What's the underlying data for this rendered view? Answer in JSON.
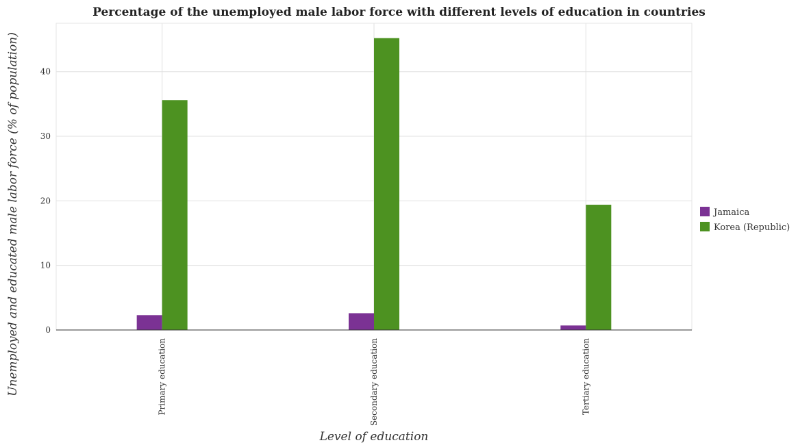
{
  "title": "Percentage of the unemployed male labor force with different levels of education in countries",
  "colors": {
    "jamaica": "#7b3294",
    "korea": "#4d9221",
    "grid": "#e0e0e0"
  },
  "chart_data": {
    "type": "bar",
    "title": "Percentage of the unemployed male labor force with different levels of education in countries",
    "xlabel": "Level of education",
    "ylabel": "Unemployed and educated male labor force (% of population)",
    "categories": [
      "Primary education",
      "Secondary education",
      "Tertiary education"
    ],
    "series": [
      {
        "name": "Jamaica",
        "color": "#7b3294",
        "values": [
          2.3,
          2.6,
          0.7
        ]
      },
      {
        "name": "Korea (Republic)",
        "color": "#4d9221",
        "values": [
          35.6,
          45.2,
          19.4
        ]
      }
    ],
    "ylim": [
      0,
      47.5
    ],
    "yticks": [
      0,
      10,
      20,
      30,
      40
    ],
    "grid": true,
    "legend_position": "right"
  }
}
